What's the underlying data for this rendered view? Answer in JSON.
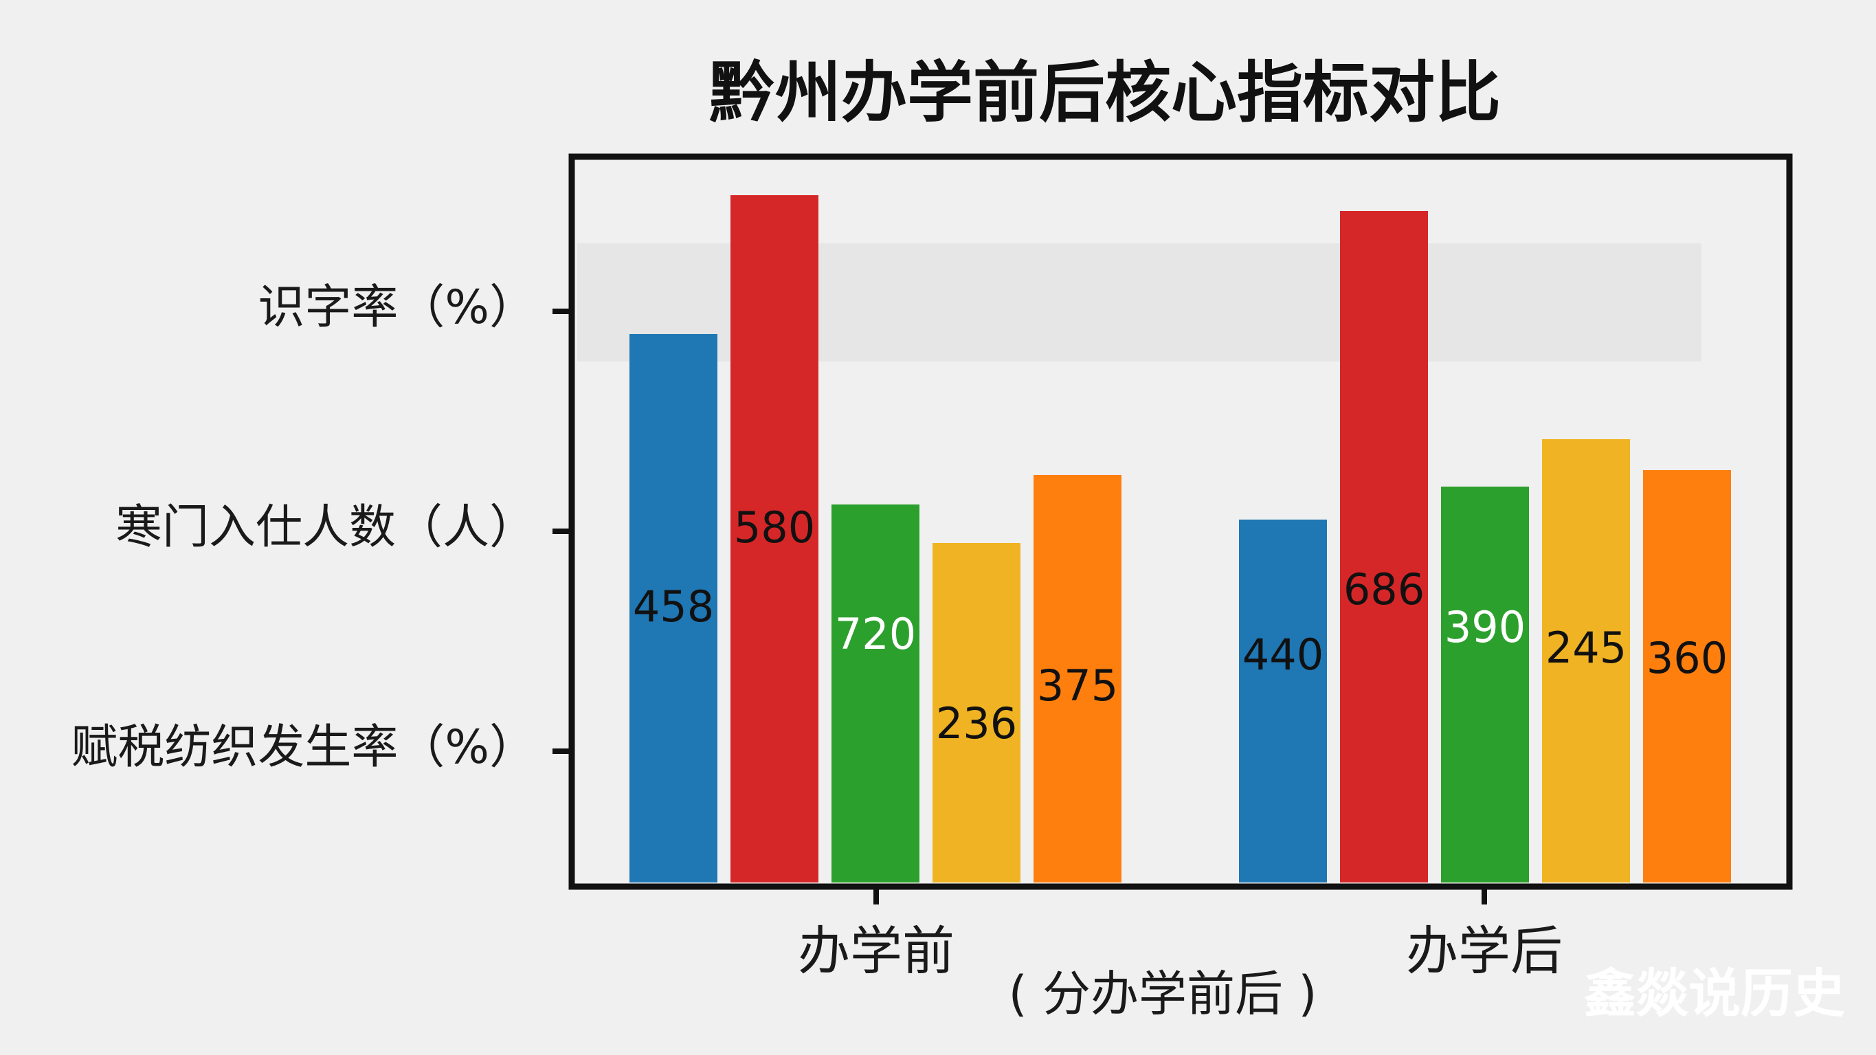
{
  "chart_data": {
    "type": "bar",
    "title": "黔州办学前后核心指标对比",
    "xlabel": "( 分办学前后 )",
    "y_tick_labels": [
      "识字率（%）",
      "寒门入仕人数（人）",
      "赋税纺织发生率（%）"
    ],
    "categories": [
      "办学前",
      "办学后"
    ],
    "series": [
      {
        "color": "#1f77b4",
        "values": [
          458,
          440
        ],
        "label_color": "#111111",
        "levels": [
          0.798,
          0.528
        ]
      },
      {
        "color": "#d62728",
        "values": [
          580,
          686
        ],
        "label_color": "#111111",
        "levels": [
          1.0,
          0.977
        ]
      },
      {
        "color": "#2ca02c",
        "values": [
          720,
          390
        ],
        "label_color": "#ffffff",
        "levels": [
          0.55,
          0.576
        ]
      },
      {
        "color": "#f0b323",
        "values": [
          236,
          245
        ],
        "label_color": "#111111",
        "levels": [
          0.494,
          0.645
        ]
      },
      {
        "color": "#ff7f0e",
        "values": [
          375,
          360
        ],
        "label_color": "#111111",
        "levels": [
          0.593,
          0.6
        ]
      }
    ],
    "label_heights": [
      [
        0.38,
        0.31
      ],
      [
        0.495,
        0.405
      ],
      [
        0.34,
        0.35
      ],
      [
        0.21,
        0.32
      ],
      [
        0.265,
        0.305
      ]
    ],
    "highlight_band": [
      0.758,
      0.93
    ],
    "grid": false,
    "legend": "none"
  },
  "watermark": "鑫燚说历史"
}
